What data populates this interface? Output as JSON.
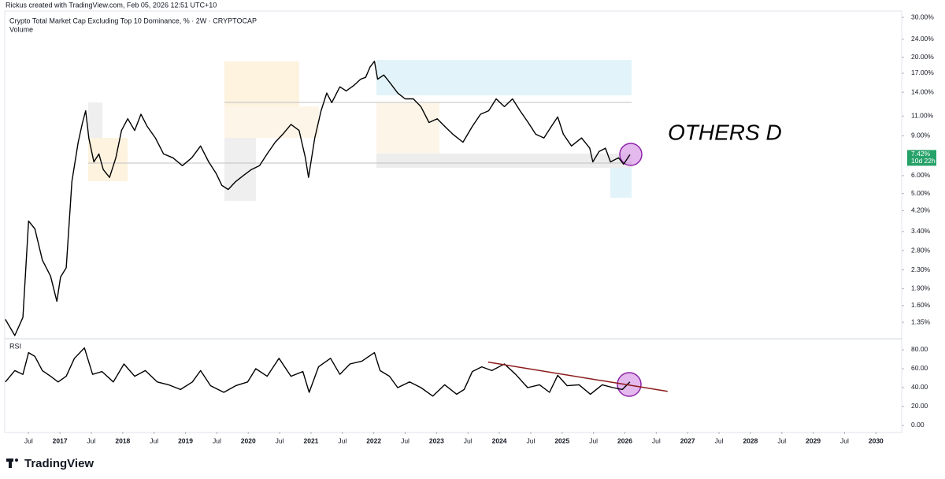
{
  "header": {
    "credit": "Rickus created with TradingView.com, Feb 05, 2026 12:51 UTC+10",
    "symbol": "Crypto Total Market Cap Excluding Top 10 Dominance, % · 2W · CRYPTOCAP",
    "volume": "Volume"
  },
  "annotation": "OTHERS D",
  "footer": {
    "logo": "TradingView"
  },
  "chart_data": {
    "type": "line",
    "log_scale": true,
    "grid": false,
    "xlim": [
      2016.12,
      2030.41
    ],
    "xticks": [
      {
        "value": 2016.5,
        "label": "Jul"
      },
      2017,
      {
        "value": 2017.5,
        "label": "Jul"
      },
      2018,
      {
        "value": 2018.5,
        "label": "Jul"
      },
      2019,
      {
        "value": 2019.5,
        "label": "Jul"
      },
      2020,
      {
        "value": 2020.5,
        "label": "Jul"
      },
      2021,
      {
        "value": 2021.5,
        "label": "Jul"
      },
      2022,
      {
        "value": 2022.5,
        "label": "Jul"
      },
      2023,
      {
        "value": 2023.5,
        "label": "Jul"
      },
      2024,
      {
        "value": 2024.5,
        "label": "Jul"
      },
      2025,
      {
        "value": 2025.5,
        "label": "Jul"
      },
      2026,
      {
        "value": 2026.5,
        "label": "Jul"
      },
      2027,
      {
        "value": 2027.5,
        "label": "Jul"
      },
      2028,
      {
        "value": 2028.5,
        "label": "Jul"
      },
      2029,
      {
        "value": 2029.5,
        "label": "Jul"
      },
      2030
    ],
    "ylim": [
      1.16,
      32
    ],
    "yticks": [
      {
        "value": 30,
        "label": "30.00%"
      },
      {
        "value": 24,
        "label": "24.00%"
      },
      {
        "value": 20,
        "label": "20.00%"
      },
      {
        "value": 17,
        "label": "17.00%"
      },
      {
        "value": 14,
        "label": "14.00%"
      },
      {
        "value": 11,
        "label": "11.00%"
      },
      {
        "value": 9,
        "label": "9.00%"
      },
      {
        "value": 6,
        "label": "6.00%"
      },
      {
        "value": 5,
        "label": "5.00%"
      },
      {
        "value": 4.2,
        "label": "4.20%"
      },
      {
        "value": 3.4,
        "label": "3.40%"
      },
      {
        "value": 2.8,
        "label": "2.80%"
      },
      {
        "value": 2.3,
        "label": "2.30%"
      },
      {
        "value": 1.9,
        "label": "1.90%"
      },
      {
        "value": 1.6,
        "label": "1.60%"
      },
      {
        "value": 1.35,
        "label": "1.35%"
      }
    ],
    "last_price": {
      "value": 7.42,
      "label": "7.42%",
      "countdown": "10d 22h",
      "color": "#26a269"
    },
    "series": [
      {
        "color": "#000000",
        "x": [
          2016.13,
          2016.28,
          2016.41,
          2016.5,
          2016.6,
          2016.72,
          2016.85,
          2016.95,
          2017.01,
          2017.1,
          2017.19,
          2017.29,
          2017.36,
          2017.41,
          2017.46,
          2017.54,
          2017.62,
          2017.69,
          2017.79,
          2017.89,
          2017.98,
          2018.08,
          2018.19,
          2018.29,
          2018.39,
          2018.52,
          2018.65,
          2018.8,
          2018.95,
          2019.1,
          2019.24,
          2019.37,
          2019.49,
          2019.58,
          2019.68,
          2019.8,
          2019.93,
          2020.05,
          2020.18,
          2020.3,
          2020.43,
          2020.55,
          2020.68,
          2020.81,
          2020.91,
          2020.96,
          2021.06,
          2021.16,
          2021.25,
          2021.33,
          2021.46,
          2021.56,
          2021.68,
          2021.79,
          2021.87,
          2021.94,
          2022.01,
          2022.06,
          2022.16,
          2022.26,
          2022.38,
          2022.5,
          2022.63,
          2022.75,
          2022.88,
          2023.01,
          2023.13,
          2023.26,
          2023.42,
          2023.57,
          2023.7,
          2023.83,
          2023.95,
          2024.08,
          2024.21,
          2024.33,
          2024.46,
          2024.58,
          2024.71,
          2024.83,
          2024.93,
          2025.02,
          2025.15,
          2025.31,
          2025.44,
          2025.49,
          2025.59,
          2025.69,
          2025.77,
          2025.9,
          2025.98,
          2026.08
        ],
        "values": [
          1.39,
          1.18,
          1.42,
          3.78,
          3.49,
          2.54,
          2.16,
          1.67,
          2.14,
          2.35,
          5.65,
          8.43,
          10.3,
          11.6,
          8.79,
          6.9,
          7.48,
          6.38,
          5.89,
          7.19,
          9.5,
          10.7,
          9.5,
          11.2,
          9.9,
          8.8,
          7.48,
          7.19,
          6.64,
          7.19,
          8.11,
          6.9,
          6.12,
          5.43,
          5.21,
          5.65,
          6.03,
          6.38,
          6.64,
          7.48,
          8.43,
          9.14,
          10.1,
          9.5,
          7.19,
          5.89,
          8.8,
          11.6,
          13.9,
          12.6,
          14.8,
          14.2,
          15.0,
          16.0,
          16.3,
          18.1,
          19.2,
          16.0,
          16.7,
          15.4,
          13.9,
          13.1,
          13.1,
          12.1,
          10.3,
          10.7,
          9.9,
          9.14,
          8.43,
          9.9,
          11.2,
          11.6,
          13.1,
          12.1,
          13.1,
          11.6,
          10.3,
          9.14,
          8.8,
          9.9,
          10.9,
          9.14,
          8.11,
          8.8,
          7.93,
          6.9,
          7.67,
          7.93,
          6.9,
          7.19,
          6.74,
          7.42
        ]
      }
    ],
    "rsi": {
      "title": "RSI",
      "ylim": [
        -6.7,
        90
      ],
      "yticks": [
        {
          "value": 80,
          "label": "80.00"
        },
        {
          "value": 60,
          "label": "60.00"
        },
        {
          "value": 40,
          "label": "40.00"
        },
        {
          "value": 20,
          "label": "20.00"
        },
        {
          "value": 0,
          "label": "0.00"
        }
      ],
      "series": [
        {
          "color": "#000000",
          "x": [
            2016.13,
            2016.28,
            2016.41,
            2016.5,
            2016.6,
            2016.72,
            2016.85,
            2016.97,
            2017.1,
            2017.23,
            2017.39,
            2017.52,
            2017.67,
            2017.85,
            2018.02,
            2018.19,
            2018.36,
            2018.55,
            2018.73,
            2018.92,
            2019.11,
            2019.24,
            2019.4,
            2019.61,
            2019.8,
            2019.99,
            2020.12,
            2020.3,
            2020.49,
            2020.68,
            2020.87,
            2020.97,
            2021.12,
            2021.31,
            2021.46,
            2021.62,
            2021.81,
            2022.01,
            2022.1,
            2022.25,
            2022.38,
            2022.57,
            2022.75,
            2022.94,
            2023.13,
            2023.32,
            2023.44,
            2023.57,
            2023.72,
            2023.88,
            2024.08,
            2024.26,
            2024.45,
            2024.64,
            2024.8,
            2024.93,
            2025.08,
            2025.27,
            2025.45,
            2025.64,
            2025.81,
            2025.96,
            2026.08
          ],
          "values": [
            46,
            58,
            54,
            77,
            73,
            58,
            52,
            46,
            52,
            71,
            82,
            54,
            57,
            46,
            65,
            52,
            58,
            46,
            43,
            38,
            46,
            58,
            42,
            35,
            42,
            46,
            60,
            52,
            71,
            52,
            57,
            35,
            62,
            71,
            54,
            65,
            68,
            77,
            58,
            52,
            40,
            46,
            40,
            31,
            43,
            33,
            38,
            57,
            62,
            58,
            65,
            54,
            40,
            43,
            35,
            53,
            42,
            43,
            33,
            43,
            40,
            38,
            46
          ]
        }
      ],
      "trendline": {
        "color": "#8b1a1a",
        "x": [
          2023.82,
          2026.68
        ],
        "values": [
          67,
          36
        ]
      }
    }
  }
}
